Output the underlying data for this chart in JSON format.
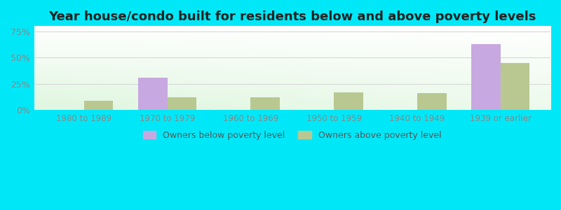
{
  "title": "Year house/condo built for residents below and above poverty levels",
  "categories": [
    "1980 to 1989",
    "1970 to 1979",
    "1960 to 1969",
    "1950 to 1959",
    "1940 to 1949",
    "1939 or earlier"
  ],
  "below_poverty": [
    0,
    31,
    0,
    0,
    0,
    63
  ],
  "above_poverty": [
    9,
    12,
    12,
    17,
    16,
    45
  ],
  "below_color": "#c8a8e0",
  "above_color": "#b8c890",
  "yticks": [
    0,
    25,
    50,
    75
  ],
  "ylim": [
    0,
    80
  ],
  "outer_background": "#00e8f8",
  "title_fontsize": 13,
  "legend_below_label": "Owners below poverty level",
  "legend_above_label": "Owners above poverty level",
  "bar_width": 0.35,
  "grid_color": "#d8d8d8",
  "tick_color": "#888888"
}
